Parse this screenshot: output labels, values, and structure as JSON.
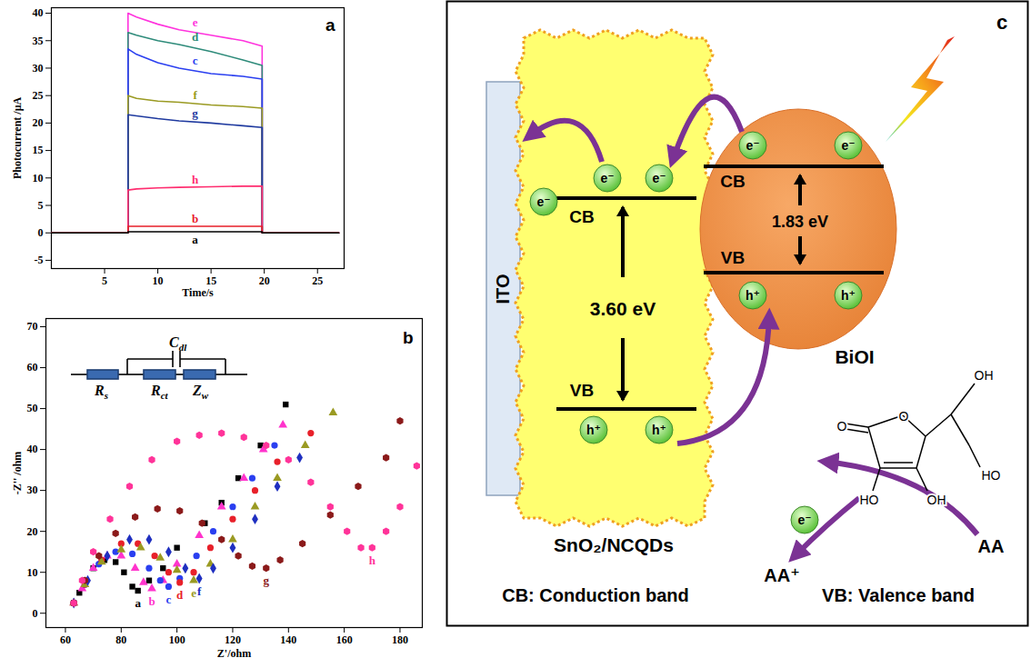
{
  "chart_data": [
    {
      "type": "line",
      "title": "a",
      "x_label": "Time/s",
      "y_label": "Photocurrent /μA",
      "xlim": [
        0,
        27.5
      ],
      "ylim": [
        -6.5,
        41
      ],
      "xticks": [
        5,
        10,
        15,
        20,
        25
      ],
      "yticks": [
        -5,
        0,
        5,
        10,
        15,
        20,
        25,
        30,
        35,
        40
      ],
      "x": [
        0,
        5,
        7.2,
        7.2,
        8,
        10,
        12,
        15,
        18,
        19.8,
        19.8,
        22,
        27
      ],
      "series": [
        {
          "name": "e",
          "color": "#ff33dd",
          "values": [
            0,
            0,
            0,
            40,
            39.3,
            38,
            37,
            36,
            35,
            34,
            0,
            0,
            0
          ]
        },
        {
          "name": "d",
          "color": "#2e8b7a",
          "values": [
            0,
            0,
            0,
            36.5,
            36,
            35,
            34.3,
            33,
            31.5,
            30.5,
            0,
            0,
            0
          ]
        },
        {
          "name": "c",
          "color": "#2a3ff0",
          "values": [
            0,
            0,
            0,
            33.5,
            32.5,
            31,
            30,
            29,
            28.5,
            28,
            0,
            0,
            0
          ]
        },
        {
          "name": "f",
          "color": "#9a9a22",
          "values": [
            0,
            0,
            0,
            25,
            24.5,
            24,
            23.8,
            23.3,
            23,
            22.7,
            0,
            0,
            0
          ]
        },
        {
          "name": "g",
          "color": "#1f3a9f",
          "values": [
            0,
            0,
            0,
            21.5,
            21.3,
            20.8,
            20.4,
            20,
            19.5,
            19.2,
            0,
            0,
            0
          ]
        },
        {
          "name": "h",
          "color": "#ff2d6f",
          "values": [
            0,
            0,
            0,
            7.8,
            8,
            8.2,
            8.3,
            8.4,
            8.5,
            8.5,
            0,
            0,
            0
          ]
        },
        {
          "name": "b",
          "color": "#e8202a",
          "values": [
            0,
            0,
            0,
            1.2,
            1.2,
            1.2,
            1.2,
            1.2,
            1.2,
            1.2,
            0,
            0,
            0
          ]
        },
        {
          "name": "a",
          "color": "#000000",
          "values": [
            0,
            0,
            0,
            0.2,
            0.2,
            0.2,
            0.2,
            0.2,
            0.2,
            0.2,
            0,
            0,
            0
          ]
        }
      ]
    },
    {
      "type": "scatter",
      "title": "b",
      "x_label": "Z'/ohm",
      "y_label": "-Z'' /ohm",
      "xlim": [
        53,
        188
      ],
      "ylim": [
        -3.5,
        72
      ],
      "xticks": [
        60,
        80,
        100,
        120,
        140,
        160,
        180
      ],
      "yticks": [
        0,
        10,
        20,
        30,
        40,
        50,
        60,
        70
      ],
      "circuit": [
        {
          "symbol": "R",
          "subscript": "s"
        },
        {
          "symbol": "C",
          "subscript": "dl"
        },
        {
          "symbol": "R",
          "subscript": "ct"
        },
        {
          "symbol": "Z",
          "subscript": "w"
        }
      ],
      "series": [
        {
          "name": "a",
          "color": "#000000",
          "marker": "square",
          "x": [
            63,
            65,
            67,
            70,
            74,
            78,
            81,
            84,
            86,
            90,
            95,
            100,
            110,
            116,
            122,
            130,
            139
          ],
          "values": [
            2.5,
            5,
            8,
            11,
            13,
            12.5,
            10,
            6.5,
            5.5,
            8,
            11,
            16,
            22,
            27,
            33,
            41,
            51
          ]
        },
        {
          "name": "b",
          "color": "#ff33cc",
          "marker": "triangle",
          "x": [
            63,
            66,
            70,
            75,
            80,
            85,
            88,
            91,
            95,
            100,
            108,
            116,
            124,
            131,
            138
          ],
          "values": [
            2.5,
            6,
            11,
            14,
            14,
            11,
            7.5,
            6,
            8,
            12,
            19,
            26,
            33,
            40,
            46
          ]
        },
        {
          "name": "c",
          "color": "#2a3ff0",
          "marker": "circle",
          "x": [
            63,
            67,
            72,
            78,
            84,
            90,
            94,
            97,
            101,
            107,
            113,
            120,
            127,
            135
          ],
          "values": [
            2.5,
            7,
            12,
            15,
            14.5,
            11,
            8,
            6.5,
            8.5,
            14,
            20,
            26,
            33,
            41
          ]
        },
        {
          "name": "d",
          "color": "#e8202a",
          "marker": "circle",
          "x": [
            63,
            67,
            73,
            80,
            86,
            92,
            97,
            101,
            106,
            112,
            120,
            128,
            136,
            148
          ],
          "values": [
            2.5,
            7,
            13,
            17,
            17,
            14,
            10,
            7.5,
            10,
            16,
            23,
            30,
            37,
            44
          ]
        },
        {
          "name": "e",
          "color": "#9a9a22",
          "marker": "triangle",
          "x": [
            63,
            67,
            73,
            80,
            87,
            94,
            100,
            106,
            112,
            120,
            128,
            136,
            146,
            156
          ],
          "values": [
            2.5,
            7,
            12.5,
            15.5,
            16,
            13.5,
            10.5,
            8,
            12,
            18,
            26,
            33,
            41,
            49
          ]
        },
        {
          "name": "f",
          "color": "#1f2fc0",
          "marker": "diamond",
          "x": [
            63,
            68,
            75,
            83,
            90,
            97,
            103,
            108,
            113,
            120,
            128,
            136,
            144
          ],
          "values": [
            2.5,
            8,
            14,
            18,
            18,
            15,
            11,
            8.5,
            11,
            16,
            23,
            31,
            38
          ]
        },
        {
          "name": "g",
          "color": "#8b1a1a",
          "marker": "hexagon",
          "x": [
            63,
            67,
            72,
            78,
            85,
            93,
            101,
            109,
            116,
            122,
            127,
            132,
            137,
            145,
            155,
            165,
            175,
            180
          ],
          "values": [
            2.5,
            8,
            14,
            19.5,
            23.5,
            25.5,
            25,
            22,
            18,
            14,
            11.5,
            11,
            13,
            17,
            24,
            31,
            38,
            47
          ]
        },
        {
          "name": "h",
          "color": "#ff3399",
          "marker": "hexagon",
          "x": [
            63,
            66,
            70,
            76,
            83,
            91,
            100,
            108,
            116,
            124,
            132,
            140,
            148,
            155,
            161,
            166,
            170,
            175,
            180,
            186
          ],
          "values": [
            2.5,
            8,
            15,
            23,
            31,
            37.5,
            42,
            43.5,
            44,
            43,
            41,
            37.5,
            32,
            26,
            20,
            16,
            16,
            20,
            26,
            36
          ]
        }
      ]
    }
  ],
  "diagram": {
    "panel": "c",
    "electrode": "ITO",
    "materials": [
      {
        "name": "SnO₂/NCQDs",
        "band_gap": "3.60 eV"
      },
      {
        "name": "BiOI",
        "band_gap": "1.83 eV"
      }
    ],
    "cb": "CB",
    "vb": "VB",
    "electron": "e⁻",
    "hole": "h⁺",
    "donor": "AA",
    "donor_oxidized": "AA⁺",
    "molecule_labels": [
      "O",
      "O",
      "OH",
      "HO",
      "HO",
      "OH"
    ],
    "key": [
      "CB: Conduction band",
      "VB: Valence band"
    ]
  }
}
